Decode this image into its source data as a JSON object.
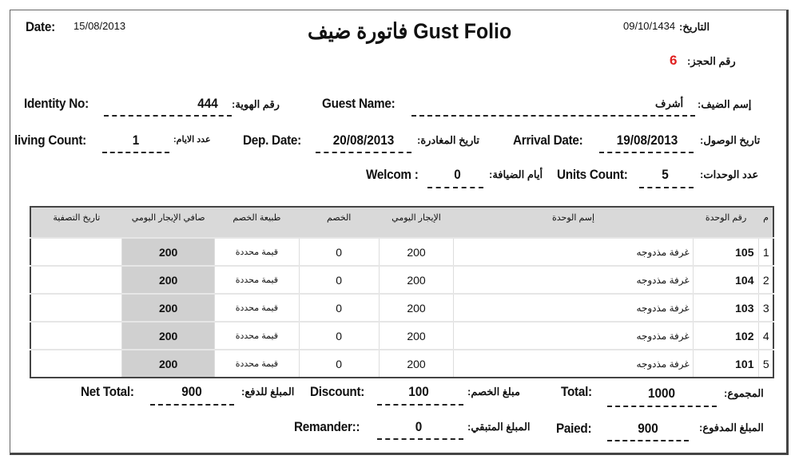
{
  "header": {
    "date_label": "Date:",
    "date_value": "15/08/2013",
    "title": "فاتورة ضيف Gust Folio",
    "hijri_label": "التاريخ:",
    "hijri_value": "09/10/1434",
    "booking_label": "رقم الحجز:",
    "booking_value": "6",
    "booking_color": "#e02020"
  },
  "guest": {
    "identity_label": "Identity No:",
    "identity_value": "444",
    "identity_label_ar": "رقم الهوية:",
    "name_label": "Guest Name:",
    "name_value": "أشرف",
    "name_label_ar": "إسم الضيف:",
    "living_label": "living Count:",
    "living_value": "1",
    "living_label_ar": "عدد الايام:",
    "dep_label": "Dep. Date:",
    "dep_value": "20/08/2013",
    "dep_label_ar": "تاريخ المغادرة:",
    "arr_label": "Arrival Date:",
    "arr_value": "19/08/2013",
    "arr_label_ar": "تاريخ الوصول:",
    "welcom_label": "Welcom :",
    "welcom_value": "0",
    "welcom_label_ar": "أيام الضيافة:",
    "units_label": "Units Count:",
    "units_value": "5",
    "units_label_ar": "عدد الوحدات:"
  },
  "table": {
    "headers": [
      "م",
      "رقم الوحدة",
      "إسم الوحدة",
      "الإيجار اليومي",
      "الخصم",
      "طبيعة الخصم",
      "صافي الإيجار اليومي",
      "تاريخ التصفية"
    ],
    "rows": [
      {
        "idx": "1",
        "unit": "105",
        "name": "غرفة مذدوجه",
        "rent": "200",
        "discount": "0",
        "type": "قيمة محددة",
        "net": "200",
        "date": ""
      },
      {
        "idx": "2",
        "unit": "104",
        "name": "غرفة مذدوجه",
        "rent": "200",
        "discount": "0",
        "type": "قيمة محددة",
        "net": "200",
        "date": ""
      },
      {
        "idx": "3",
        "unit": "103",
        "name": "غرفة مذدوجه",
        "rent": "200",
        "discount": "0",
        "type": "قيمة محددة",
        "net": "200",
        "date": ""
      },
      {
        "idx": "4",
        "unit": "102",
        "name": "غرفة مذدوجه",
        "rent": "200",
        "discount": "0",
        "type": "قيمة محددة",
        "net": "200",
        "date": ""
      },
      {
        "idx": "5",
        "unit": "101",
        "name": "غرفة مذدوجه",
        "rent": "200",
        "discount": "0",
        "type": "قيمة محددة",
        "net": "200",
        "date": ""
      }
    ]
  },
  "totals": {
    "net_label": "Net Total:",
    "net_value": "900",
    "net_label_ar": "المبلغ للدفع:",
    "discount_label": "Discount:",
    "discount_value": "100",
    "discount_label_ar": "مبلغ الخصم:",
    "total_label": "Total:",
    "total_value": "1000",
    "total_label_ar": "المجموع:",
    "remain_label": "Remander::",
    "remain_value": "0",
    "remain_label_ar": "المبلغ المتبقي:",
    "paid_label": "Paied:",
    "paid_value": "900",
    "paid_label_ar": "المبلغ المدفوع:"
  }
}
